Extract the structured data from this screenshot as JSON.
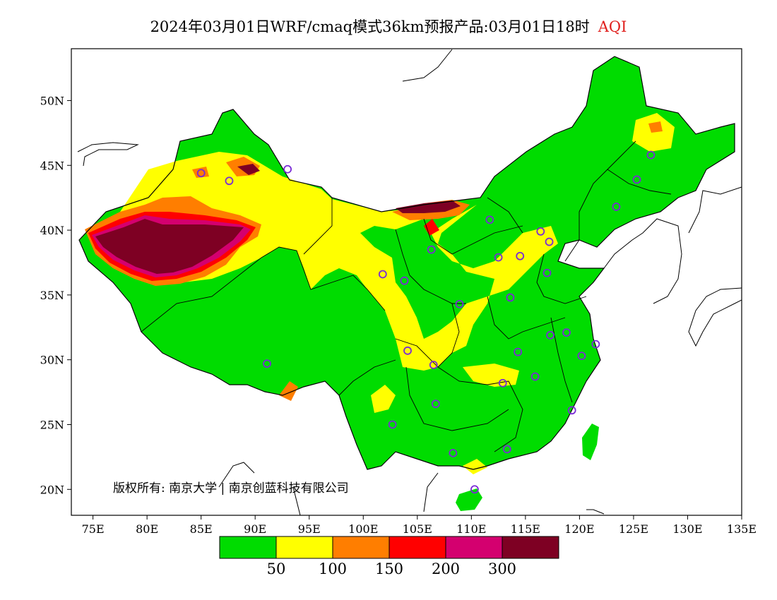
{
  "title": {
    "text": "2024年03月01日WRF/cmaq模式36km预报产品:03月01日18时",
    "variable": "AQI",
    "variable_color": "#e0201e"
  },
  "axes": {
    "x_ticks": [
      "75E",
      "80E",
      "85E",
      "90E",
      "95E",
      "100E",
      "105E",
      "110E",
      "115E",
      "120E",
      "125E",
      "130E",
      "135E"
    ],
    "y_ticks": [
      "50N",
      "45N",
      "40N",
      "35N",
      "30N",
      "25N",
      "20N"
    ],
    "lon_range": [
      73,
      135
    ],
    "lat_range": [
      18,
      54
    ]
  },
  "legend": {
    "colors": [
      "#00dc00",
      "#ffff00",
      "#ff7e00",
      "#ff0000",
      "#d4006f",
      "#7e0023"
    ],
    "labels": [
      "50",
      "100",
      "150",
      "200",
      "300"
    ]
  },
  "copyright": "版权所有: 南京大学 | 南京创蓝科技有限公司",
  "stations": [
    {
      "lon": 87.6,
      "lat": 43.8
    },
    {
      "lon": 91.1,
      "lat": 29.7
    },
    {
      "lon": 101.8,
      "lat": 36.6
    },
    {
      "lon": 103.8,
      "lat": 36.1
    },
    {
      "lon": 106.3,
      "lat": 38.5
    },
    {
      "lon": 111.7,
      "lat": 40.8
    },
    {
      "lon": 112.5,
      "lat": 37.9
    },
    {
      "lon": 114.5,
      "lat": 38.0
    },
    {
      "lon": 116.4,
      "lat": 39.9
    },
    {
      "lon": 117.2,
      "lat": 39.1
    },
    {
      "lon": 117.0,
      "lat": 36.7
    },
    {
      "lon": 113.6,
      "lat": 34.8
    },
    {
      "lon": 108.9,
      "lat": 34.3
    },
    {
      "lon": 104.1,
      "lat": 30.7
    },
    {
      "lon": 106.5,
      "lat": 29.6
    },
    {
      "lon": 114.3,
      "lat": 30.6
    },
    {
      "lon": 112.9,
      "lat": 28.2
    },
    {
      "lon": 115.9,
      "lat": 28.7
    },
    {
      "lon": 117.3,
      "lat": 31.9
    },
    {
      "lon": 118.8,
      "lat": 32.1
    },
    {
      "lon": 120.2,
      "lat": 30.3
    },
    {
      "lon": 121.5,
      "lat": 31.2
    },
    {
      "lon": 119.3,
      "lat": 26.1
    },
    {
      "lon": 113.3,
      "lat": 23.1
    },
    {
      "lon": 108.3,
      "lat": 22.8
    },
    {
      "lon": 106.7,
      "lat": 26.6
    },
    {
      "lon": 102.7,
      "lat": 25.0
    },
    {
      "lon": 110.3,
      "lat": 20.0
    },
    {
      "lon": 123.4,
      "lat": 41.8
    },
    {
      "lon": 125.3,
      "lat": 43.9
    },
    {
      "lon": 126.6,
      "lat": 45.8
    },
    {
      "lon": 85.0,
      "lat": 44.4
    },
    {
      "lon": 93.0,
      "lat": 44.7
    }
  ]
}
